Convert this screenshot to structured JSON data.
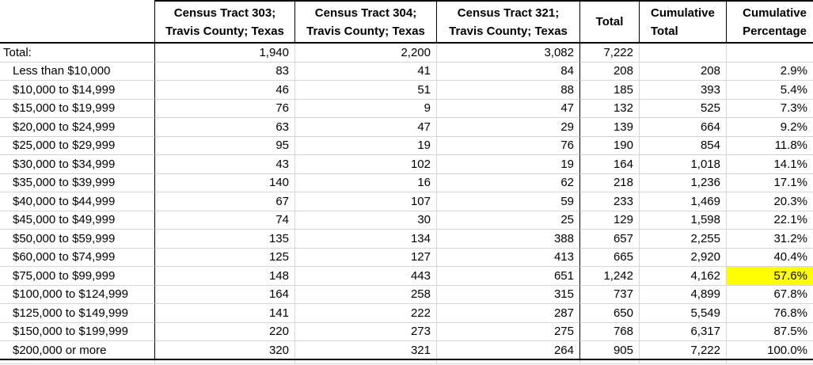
{
  "app": {
    "type": "spreadsheet-table",
    "description": "Household income distribution by census tract with cumulative totals"
  },
  "colors": {
    "background": "#ffffff",
    "text": "#000000",
    "grid_line": "#d6d6d6",
    "table_border": "#000000",
    "highlight": "#ffff00"
  },
  "table": {
    "columns": [
      {
        "id": "label",
        "header": "",
        "align": "left"
      },
      {
        "id": "tract303",
        "header_line1": "Census Tract 303;",
        "header_line2": "Travis County; Texas",
        "align": "center"
      },
      {
        "id": "tract304",
        "header_line1": "Census Tract 304;",
        "header_line2": "Travis County; Texas",
        "align": "center"
      },
      {
        "id": "tract321",
        "header_line1": "Census Tract 321;",
        "header_line2": "Travis County; Texas",
        "align": "center"
      },
      {
        "id": "total",
        "header": "Total",
        "align": "center"
      },
      {
        "id": "cumulative_total",
        "header_line1": "Cumulative",
        "header_line2": "Total",
        "align": "left"
      },
      {
        "id": "cumulative_percentage",
        "header_line1": "Cumulative",
        "header_line2": "Percentage",
        "align": "right"
      }
    ],
    "rows": [
      {
        "label": "Total:",
        "indent": false,
        "values": [
          "1,940",
          "2,200",
          "3,082",
          "7,222",
          "",
          ""
        ]
      },
      {
        "label": "Less than $10,000",
        "indent": true,
        "values": [
          "83",
          "41",
          "84",
          "208",
          "208",
          "2.9%"
        ]
      },
      {
        "label": "$10,000 to $14,999",
        "indent": true,
        "values": [
          "46",
          "51",
          "88",
          "185",
          "393",
          "5.4%"
        ]
      },
      {
        "label": "$15,000 to $19,999",
        "indent": true,
        "values": [
          "76",
          "9",
          "47",
          "132",
          "525",
          "7.3%"
        ]
      },
      {
        "label": "$20,000 to $24,999",
        "indent": true,
        "values": [
          "63",
          "47",
          "29",
          "139",
          "664",
          "9.2%"
        ]
      },
      {
        "label": "$25,000 to $29,999",
        "indent": true,
        "values": [
          "95",
          "19",
          "76",
          "190",
          "854",
          "11.8%"
        ]
      },
      {
        "label": "$30,000 to $34,999",
        "indent": true,
        "values": [
          "43",
          "102",
          "19",
          "164",
          "1,018",
          "14.1%"
        ]
      },
      {
        "label": "$35,000 to $39,999",
        "indent": true,
        "values": [
          "140",
          "16",
          "62",
          "218",
          "1,236",
          "17.1%"
        ]
      },
      {
        "label": "$40,000 to $44,999",
        "indent": true,
        "values": [
          "67",
          "107",
          "59",
          "233",
          "1,469",
          "20.3%"
        ]
      },
      {
        "label": "$45,000 to $49,999",
        "indent": true,
        "values": [
          "74",
          "30",
          "25",
          "129",
          "1,598",
          "22.1%"
        ]
      },
      {
        "label": "$50,000 to $59,999",
        "indent": true,
        "values": [
          "135",
          "134",
          "388",
          "657",
          "2,255",
          "31.2%"
        ]
      },
      {
        "label": "$60,000 to $74,999",
        "indent": true,
        "values": [
          "125",
          "127",
          "413",
          "665",
          "2,920",
          "40.4%"
        ]
      },
      {
        "label": "$75,000 to $99,999",
        "indent": true,
        "values": [
          "148",
          "443",
          "651",
          "1,242",
          "4,162",
          "57.6%"
        ]
      },
      {
        "label": "$100,000 to $124,999",
        "indent": true,
        "values": [
          "164",
          "258",
          "315",
          "737",
          "4,899",
          "67.8%"
        ]
      },
      {
        "label": "$125,000 to $149,999",
        "indent": true,
        "values": [
          "141",
          "222",
          "287",
          "650",
          "5,549",
          "76.8%"
        ]
      },
      {
        "label": "$150,000 to $199,999",
        "indent": true,
        "values": [
          "220",
          "273",
          "275",
          "768",
          "6,317",
          "87.5%"
        ]
      },
      {
        "label": "$200,000 or more",
        "indent": true,
        "values": [
          "320",
          "321",
          "264",
          "905",
          "7,222",
          "100.0%"
        ]
      }
    ],
    "highlight": {
      "row_index": 12,
      "value_index": 5,
      "row_label": "$75,000 to $99,999",
      "column_id": "cumulative_percentage",
      "color": "#ffff00"
    }
  }
}
